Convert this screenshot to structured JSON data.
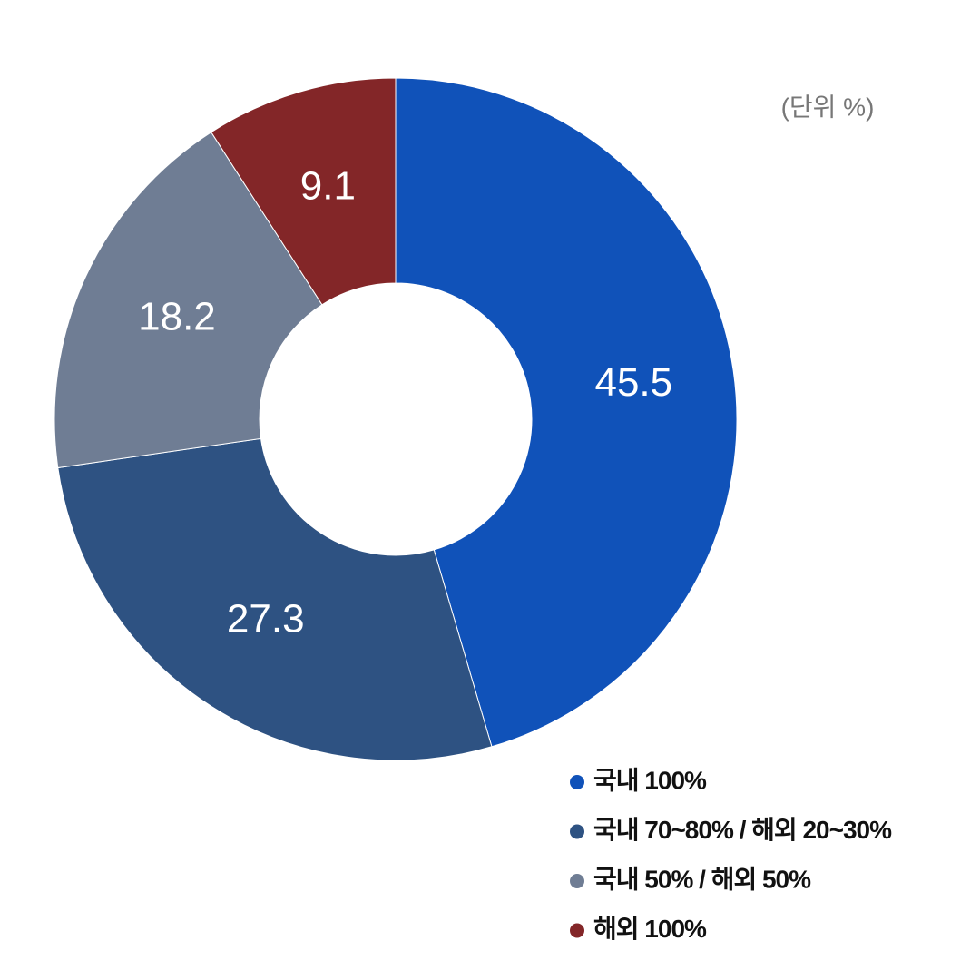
{
  "chart_data": {
    "type": "pie",
    "donut": true,
    "note": "(단위 %)",
    "categories": [
      "국내 100%",
      "국내 70~80% / 해외 20~30%",
      "국내 50% / 해외 50%",
      "해외 100%"
    ],
    "values": [
      45.5,
      27.3,
      18.2,
      9.1
    ],
    "colors": [
      "#1052b9",
      "#2e5282",
      "#6f7d94",
      "#832628"
    ],
    "legend": "bottom-right"
  }
}
